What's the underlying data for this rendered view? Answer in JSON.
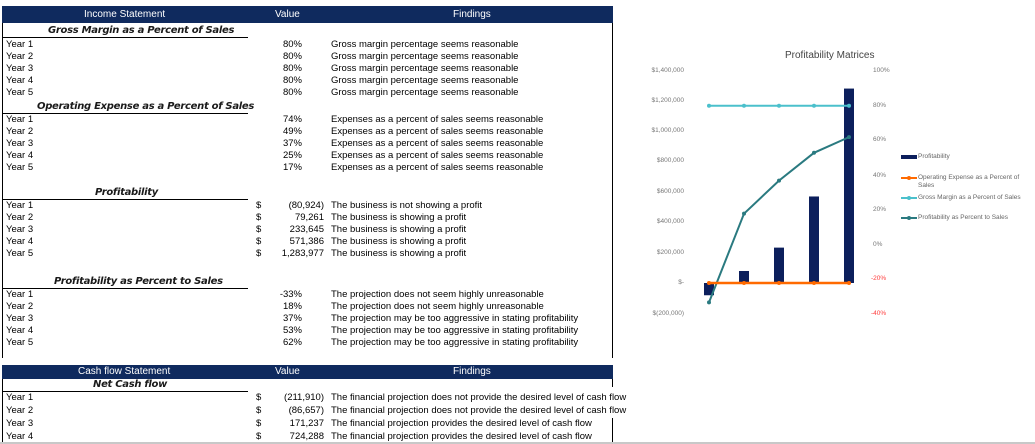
{
  "income_header": {
    "statement": "Income Statement",
    "value": "Value",
    "findings": "Findings"
  },
  "sections": {
    "gross_margin": {
      "title": "Gross Margin as a Percent of Sales",
      "rows": [
        {
          "label": "Year 1",
          "value": "80%",
          "finding": "Gross margin percentage seems reasonable"
        },
        {
          "label": "Year 2",
          "value": "80%",
          "finding": "Gross margin percentage seems reasonable"
        },
        {
          "label": "Year 3",
          "value": "80%",
          "finding": "Gross margin percentage seems reasonable"
        },
        {
          "label": "Year 4",
          "value": "80%",
          "finding": "Gross margin percentage seems reasonable"
        },
        {
          "label": "Year 5",
          "value": "80%",
          "finding": "Gross margin percentage seems reasonable"
        }
      ]
    },
    "operating_expense": {
      "title": "Operating Expense as a Percent of Sales",
      "rows": [
        {
          "label": "Year 1",
          "value": "74%",
          "finding": "Expenses as a percent of sales seems reasonable"
        },
        {
          "label": "Year 2",
          "value": "49%",
          "finding": "Expenses as a percent of sales seems reasonable"
        },
        {
          "label": "Year 3",
          "value": "37%",
          "finding": "Expenses as a percent of sales seems reasonable"
        },
        {
          "label": "Year 4",
          "value": "25%",
          "finding": "Expenses as a percent of sales seems reasonable"
        },
        {
          "label": "Year 5",
          "value": "17%",
          "finding": "Expenses as a percent of sales seems reasonable"
        }
      ]
    },
    "profitability": {
      "title": "Profitability",
      "rows": [
        {
          "label": "Year 1",
          "currency": "$",
          "value": "(80,924)",
          "finding": "The business is not showing a profit"
        },
        {
          "label": "Year 2",
          "currency": "$",
          "value": "79,261",
          "finding": "The business is showing a profit"
        },
        {
          "label": "Year 3",
          "currency": "$",
          "value": "233,645",
          "finding": "The business is showing a profit"
        },
        {
          "label": "Year 4",
          "currency": "$",
          "value": "571,386",
          "finding": "The business is showing a profit"
        },
        {
          "label": "Year 5",
          "currency": "$",
          "value": "1,283,977",
          "finding": "The business is showing a profit"
        }
      ]
    },
    "profitability_pct": {
      "title": "Profitability as Percent to Sales",
      "rows": [
        {
          "label": "Year 1",
          "value": "-33%",
          "finding": "The projection does not seem highly unreasonable"
        },
        {
          "label": "Year 2",
          "value": "18%",
          "finding": "The projection does not seem highly unreasonable"
        },
        {
          "label": "Year 3",
          "value": "37%",
          "finding": "The projection may be too aggressive in stating profitability"
        },
        {
          "label": "Year 4",
          "value": "53%",
          "finding": "The projection may be too aggressive in stating profitability"
        },
        {
          "label": "Year 5",
          "value": "62%",
          "finding": "The projection may be too aggressive in stating profitability"
        }
      ]
    },
    "net_cash_flow": {
      "title": "Net Cash flow",
      "rows": [
        {
          "label": "Year 1",
          "currency": "$",
          "value": "(211,910)",
          "finding": "The financial projection does not provide the desired level of cash flow"
        },
        {
          "label": "Year 2",
          "currency": "$",
          "value": "(86,657)",
          "finding": "The financial projection does not provide the desired level of cash flow"
        },
        {
          "label": "Year 3",
          "currency": "$",
          "value": "171,237",
          "finding": "The financial projection provides the desired level of cash flow"
        },
        {
          "label": "Year 4",
          "currency": "$",
          "value": "724,288",
          "finding": "The financial projection provides the desired level of cash flow"
        }
      ]
    }
  },
  "cashflow_header": {
    "statement": "Cash flow Statement",
    "value": "Value",
    "findings": "Findings"
  },
  "colors": {
    "header_bg": "#0f2a5e",
    "bar": "#0c1f5c",
    "operating_expense_line": "#ff6a00",
    "gross_margin_line": "#4bc0cc",
    "profitability_pct_line": "#2a7a80",
    "negative_axis": "#ff3b3b"
  },
  "chart_data": {
    "type": "bar",
    "title": "Profitability Matrices",
    "categories": [
      "Year 1",
      "Year 2",
      "Year 3",
      "Year 4",
      "Year 5"
    ],
    "series": [
      {
        "name": "Profitability",
        "type": "bar",
        "axis": "left",
        "values": [
          -80924,
          79261,
          233645,
          571386,
          1283977
        ]
      },
      {
        "name": "Operating Expense as a Percent of Sales",
        "type": "line",
        "axis": "left",
        "values": [
          0.74,
          0.49,
          0.37,
          0.25,
          0.17
        ]
      },
      {
        "name": "Gross Margin as a Percent of Sales",
        "type": "line",
        "axis": "right",
        "values": [
          0.8,
          0.8,
          0.8,
          0.8,
          0.8
        ]
      },
      {
        "name": "Profitability as Percent to Sales",
        "type": "line",
        "axis": "right",
        "values": [
          -0.33,
          0.18,
          0.37,
          0.53,
          0.62
        ]
      }
    ],
    "left_axis": {
      "ticks": [
        "$1,400,000",
        "$1,200,000",
        "$1,000,000",
        "$800,000",
        "$600,000",
        "$400,000",
        "$200,000",
        "$-",
        "$(200,000)"
      ],
      "range": [
        -200000,
        1400000
      ]
    },
    "right_axis": {
      "ticks": [
        "100%",
        "80%",
        "60%",
        "40%",
        "20%",
        "0%",
        "-20%",
        "-40%"
      ],
      "range": [
        -0.4,
        1.0
      ]
    },
    "legend": [
      "Profitability",
      "Operating Expense as a Percent of Sales",
      "Gross Margin as a Percent of Sales",
      "Profitability as Percent to Sales"
    ],
    "legend_position": "right",
    "grid": false
  }
}
